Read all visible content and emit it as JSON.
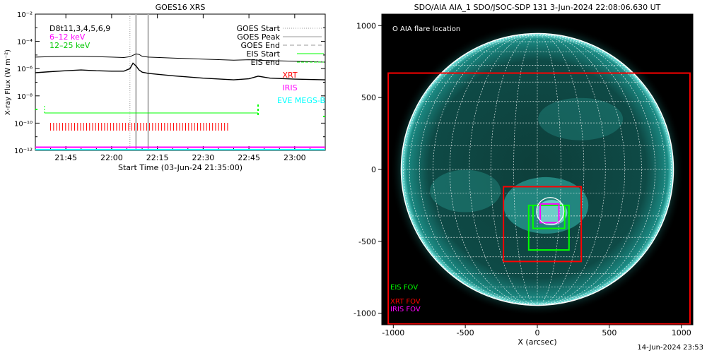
{
  "left_title": "GOES16 XRS",
  "right_title": "SDO/AIA AIA_1 SDO/JSOC-SDP 131  3-Jun-2024 22:08:06.630 UT",
  "footer_date": "14-Jun-2024 23:53",
  "colors": {
    "long_channel": "#000000",
    "mid_channel": "#ff00ff",
    "short_channel": "#00c800",
    "eis": "#00ff00",
    "xrt": "#ff0000",
    "iris": "#ff00ff",
    "eve": "#00ffff",
    "goes_lines": "#b0b0b0",
    "sun_disk": "#0e4a46"
  },
  "chart_data": [
    {
      "type": "line",
      "title": "GOES16 XRS",
      "xlabel": "Start Time (03-Jun-24 21:35:00)",
      "ylabel": "X-ray Flux (W m⁻²)",
      "xlim": [
        "21:35",
        "23:10"
      ],
      "ylim": [
        1e-12,
        0.01
      ],
      "y_scale": "log",
      "x_ticks": [
        "21:45",
        "22:00",
        "22:15",
        "22:30",
        "22:45",
        "23:00"
      ],
      "y_ticks": [
        "10⁻¹²",
        "10⁻¹⁰",
        "10⁻⁸",
        "10⁻⁶",
        "10⁻⁴",
        "10⁻²"
      ],
      "legend_top_left": [
        "D8t11,3,4,5,6,9",
        "6–12 keV",
        "12–25 keV"
      ],
      "legend_top_right": [
        "GOES Start",
        "GOES Peak",
        "GOES End",
        "EIS Start",
        "EIS end",
        "XRT",
        "IRIS",
        "EVE MEGS-B"
      ],
      "series": [
        {
          "name": "D8t11,3,4,5,6,9",
          "x": [
            "21:35",
            "21:40",
            "21:45",
            "21:50",
            "21:55",
            "22:00",
            "22:04",
            "22:06",
            "22:07",
            "22:08",
            "22:09",
            "22:10",
            "22:12",
            "22:20",
            "22:30",
            "22:40",
            "22:45",
            "22:50",
            "23:00",
            "23:10"
          ],
          "y": [
            7e-06,
            7.5e-06,
            8e-06,
            8e-06,
            7.5e-06,
            7e-06,
            6.5e-06,
            7.5e-06,
            9.5e-06,
            1.2e-05,
            1.1e-05,
            8e-06,
            7e-06,
            6e-06,
            5e-06,
            4.2e-06,
            4.5e-06,
            4e-06,
            3.5e-06,
            3e-06
          ]
        },
        {
          "name": "12–25 keV",
          "x": [
            "21:35",
            "21:40",
            "21:45",
            "21:50",
            "21:55",
            "22:00",
            "22:04",
            "22:06",
            "22:07",
            "22:08",
            "22:09",
            "22:10",
            "22:12",
            "22:20",
            "22:30",
            "22:40",
            "22:45",
            "22:48",
            "22:52",
            "23:00",
            "23:10"
          ],
          "y": [
            5e-07,
            6e-07,
            7e-07,
            8e-07,
            7e-07,
            6.5e-07,
            6.5e-07,
            1e-06,
            2.5e-06,
            1.6e-06,
            8e-07,
            5.5e-07,
            4.5e-07,
            3e-07,
            2e-07,
            1.5e-07,
            1.8e-07,
            2.8e-07,
            2e-07,
            1.7e-07,
            1.5e-07
          ]
        }
      ],
      "goes_start": "22:06",
      "goes_peak": "22:08",
      "goes_end": "22:12",
      "eis_start": "21:38",
      "eis_end": "22:48",
      "iris_level": 1.2e-12,
      "eve_level": 1e-12,
      "xrt_bursts": {
        "from": "21:40",
        "to": "22:38",
        "count": 60
      }
    },
    {
      "type": "scatter",
      "title": "SDO/AIA AIA_1 SDO/JSOC-SDP 131  3-Jun-2024 22:08:06.630 UT",
      "xlabel": "X (arcsec)",
      "ylabel": "",
      "xlim": [
        -1080,
        1080
      ],
      "ylim": [
        -1080,
        1080
      ],
      "x_ticks": [
        -1000,
        -500,
        0,
        500,
        1000
      ],
      "y_ticks": [
        -1000,
        -500,
        0,
        500,
        1000
      ],
      "legend": "O AIA flare location",
      "fov_labels": [
        "EIS FOV",
        "XRT FOV",
        "IRIS FOV"
      ],
      "solar_radius": 945,
      "flare_location": {
        "x": 90,
        "y": -290,
        "r": 95
      },
      "xrt_outer_fov": {
        "x0": -1035,
        "x1": 1060,
        "y0": -1075,
        "y1": 670
      },
      "xrt_fov": {
        "x0": -235,
        "x1": 305,
        "y0": -640,
        "y1": -120
      },
      "eis_fov": [
        {
          "x0": -60,
          "x1": 220,
          "y0": -560,
          "y1": -250
        },
        {
          "x0": -30,
          "x1": 190,
          "y0": -410,
          "y1": -250
        }
      ],
      "iris_fov": {
        "x0": 20,
        "x1": 150,
        "y0": -370,
        "y1": -240
      }
    }
  ]
}
